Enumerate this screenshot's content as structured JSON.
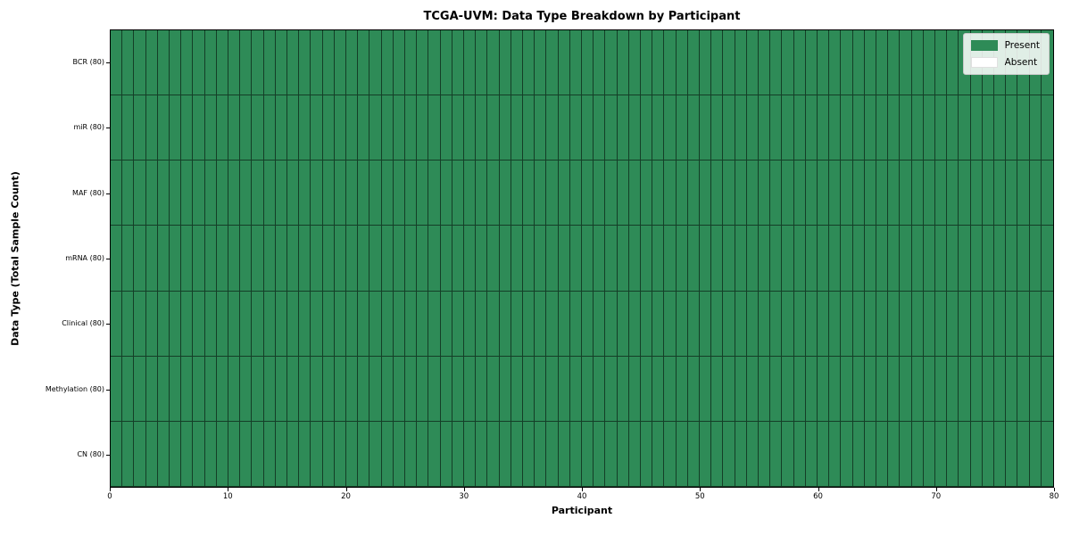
{
  "figure": {
    "kind": "matplotlib-style static chart",
    "background": "#ffffff"
  },
  "chart_data": {
    "type": "heatmap",
    "title": "TCGA-UVM: Data Type Breakdown by Participant",
    "xlabel": "Participant",
    "ylabel": "Data Type (Total Sample Count)",
    "n_participants": 80,
    "xlim": [
      0,
      80
    ],
    "x_ticks": [
      0,
      10,
      20,
      30,
      40,
      50,
      60,
      70,
      80
    ],
    "grid": "cell borders on, dark thin lines",
    "rows": [
      {
        "label": "BCR (80)",
        "data_type": "BCR",
        "total_samples": 80,
        "present_count": 80,
        "absent_count": 0
      },
      {
        "label": "miR (80)",
        "data_type": "miR",
        "total_samples": 80,
        "present_count": 80,
        "absent_count": 0
      },
      {
        "label": "MAF (80)",
        "data_type": "MAF",
        "total_samples": 80,
        "present_count": 80,
        "absent_count": 0
      },
      {
        "label": "mRNA (80)",
        "data_type": "mRNA",
        "total_samples": 80,
        "present_count": 80,
        "absent_count": 0
      },
      {
        "label": "Clinical (80)",
        "data_type": "Clinical",
        "total_samples": 80,
        "present_count": 80,
        "absent_count": 0
      },
      {
        "label": "Methylation (80)",
        "data_type": "Methylation",
        "total_samples": 80,
        "present_count": 80,
        "absent_count": 0
      },
      {
        "label": "CN (80)",
        "data_type": "CN",
        "total_samples": 80,
        "present_count": 80,
        "absent_count": 0
      }
    ],
    "legend": {
      "position": "upper right",
      "entries": [
        {
          "label": "Present",
          "color": "#2E8B57"
        },
        {
          "label": "Absent",
          "color": "#FFFFFF"
        }
      ]
    },
    "colors": {
      "present": "#2E8B57",
      "absent": "#FFFFFF",
      "cell_border": "rgba(0,0,0,0.55)",
      "spine": "#000000"
    }
  }
}
